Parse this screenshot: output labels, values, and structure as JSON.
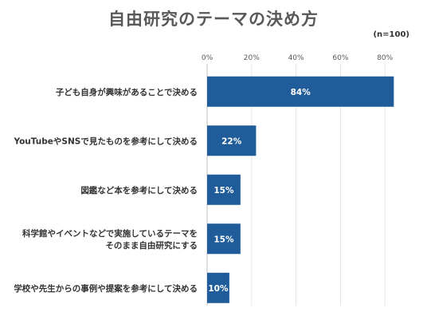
{
  "chart_data": {
    "type": "bar",
    "orientation": "horizontal",
    "title": "自由研究のテーマの決め方",
    "note": "(n=100)",
    "categories": [
      [
        "子ども自身が興味があることで決める"
      ],
      [
        "YouTubeやSNSで見たものを参考にして決める"
      ],
      [
        "図鑑など本を参考にして決める"
      ],
      [
        "科学館やイベントなどで実施しているテーマを",
        "そのまま自由研究にする"
      ],
      [
        "学校や先生からの事例や提案を参考にして決める"
      ]
    ],
    "values": [
      84,
      22,
      15,
      15,
      10
    ],
    "data_labels": [
      "84%",
      "22%",
      "15%",
      "15%",
      "10%"
    ],
    "x_ticks": [
      "0%",
      "20%",
      "40%",
      "60%",
      "80%"
    ],
    "xlim": [
      0,
      86
    ],
    "grid": true,
    "bar_color": "#1f5c99"
  }
}
